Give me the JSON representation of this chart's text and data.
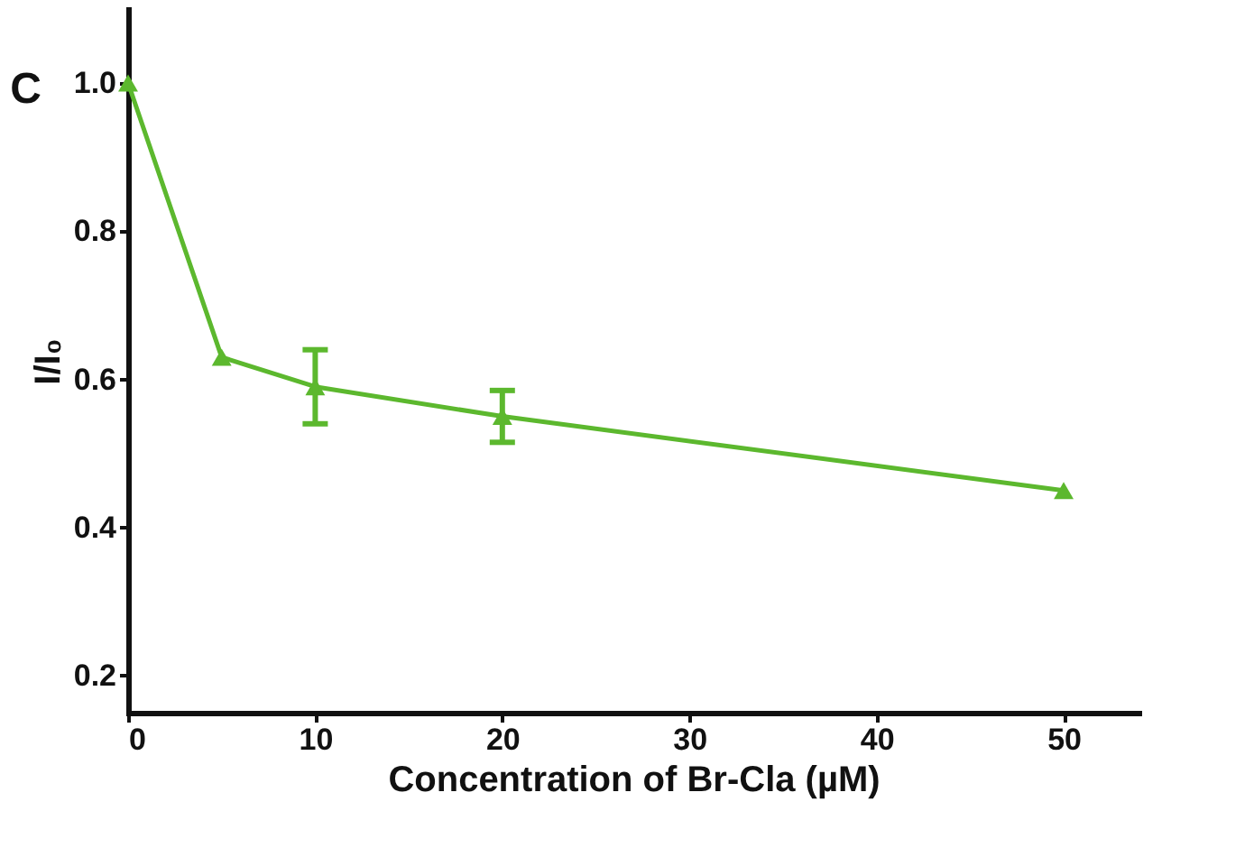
{
  "chart_data": {
    "type": "line",
    "xlabel": "Concentration of Br-Cla (µM)",
    "ylabel": "I/I₀",
    "annotations": [
      "C"
    ],
    "x": [
      0,
      5,
      10,
      20,
      50
    ],
    "series": [
      {
        "color": "#5cb82e",
        "values": [
          1.0,
          0.63,
          0.59,
          0.55,
          0.45
        ],
        "errors": [
          null,
          null,
          0.05,
          0.035,
          null
        ]
      }
    ],
    "xlim": [
      0,
      54
    ],
    "xticks": [
      0,
      10,
      20,
      30,
      40,
      50
    ],
    "ylim": [
      0.15,
      1.1
    ],
    "yticks": [
      {
        "value": 0.2,
        "label": "0.2"
      },
      {
        "value": 0.4,
        "label": "0.4"
      },
      {
        "value": 0.6,
        "label": "0.6"
      },
      {
        "value": 0.8,
        "label": "0.8"
      },
      {
        "value": 1.0,
        "label": "1.0"
      }
    ],
    "marker": "triangle",
    "line_style": "solid",
    "grid": false
  }
}
